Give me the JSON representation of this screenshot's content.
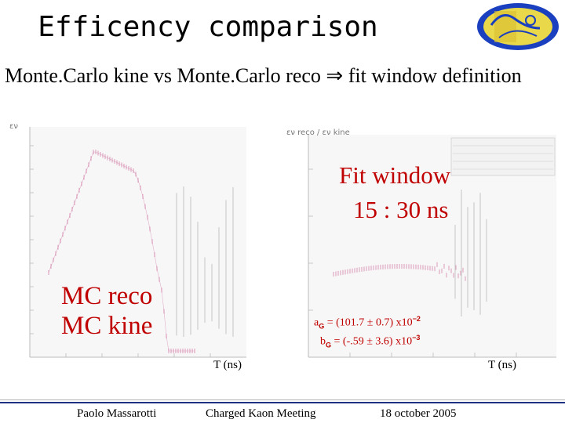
{
  "slide": {
    "title": "Efficency comparison",
    "subtitle": "Monte.Carlo kine vs Monte.Carlo reco ⇒ fit window definition"
  },
  "logo": {
    "name": "experiment-logo"
  },
  "left_plot": {
    "ylabel": "εν",
    "legend_reco": "MC reco",
    "legend_kine": "MC kine",
    "xaxis_label": "T (ns)"
  },
  "right_plot": {
    "ylabel": "εν reco / εν kine",
    "fit_window_line1": "Fit window",
    "fit_window_line2": "15 : 30 ns",
    "aG_prefix": "a",
    "aG_sub": "G",
    "aG_value": " = (101.7 ± 0.7) x10",
    "aG_exp": "−2",
    "bG_prefix": "b",
    "bG_sub": "G",
    "bG_value": " = (-.59 ± 3.6) x10",
    "bG_exp": "−3",
    "xaxis_label": "T (ns)"
  },
  "footer": {
    "author": "Paolo Massarotti",
    "meeting": "Charged Kaon Meeting",
    "date": "18 october 2005"
  },
  "colors": {
    "red_text": "#c00000",
    "footer_bar": "#203080",
    "plot_points": "#d070a0"
  }
}
